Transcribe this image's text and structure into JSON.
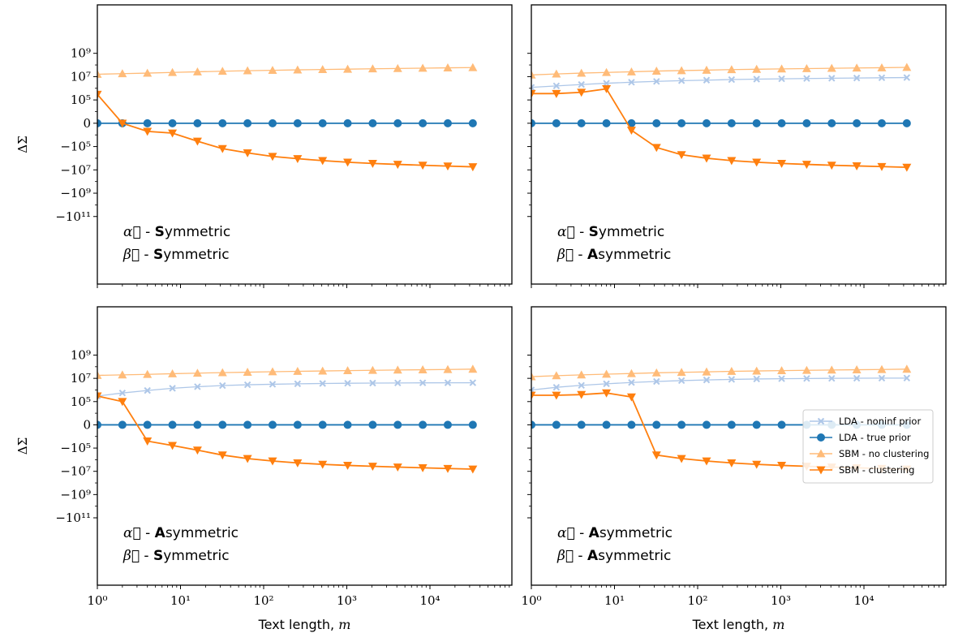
{
  "chart_data": [
    {
      "type": "line",
      "panel": "top-left",
      "annotation": {
        "alpha": "Symmetric",
        "beta": "Symmetric"
      },
      "xlabel": "",
      "ylabel": "ΔΣ",
      "xscale": "log",
      "yscale": "symlog",
      "xlim": [
        1,
        60000
      ],
      "x": [
        1,
        2,
        4,
        8,
        16,
        32,
        64,
        128,
        256,
        512,
        1024,
        2048,
        4096,
        8192,
        16384,
        32768
      ],
      "series": [
        {
          "name": "LDA - noninf prior",
          "marker": "x",
          "color": "#aec7e8",
          "values": null
        },
        {
          "name": "LDA - true prior",
          "marker": "o",
          "color": "#1f77b4",
          "values": [
            0,
            0,
            0,
            0,
            0,
            0,
            0,
            0,
            0,
            0,
            0,
            0,
            0,
            0,
            0,
            0
          ]
        },
        {
          "name": "SBM - no clustering",
          "marker": "^",
          "color": "#ffbb78",
          "values": [
            16000000,
            18000000,
            20000000,
            23000000,
            26000000,
            29000000,
            32000000,
            35000000,
            38000000,
            41000000,
            44000000,
            47000000,
            50000000,
            53000000,
            57000000,
            60000000
          ]
        },
        {
          "name": "SBM - clustering",
          "marker": "v",
          "color": "#ff7f0e",
          "values": [
            300000,
            -3,
            -5000,
            -7000,
            -35000,
            -150000,
            -350000,
            -700000,
            -1100000,
            -1600000,
            -2200000,
            -2800000,
            -3400000,
            -4000000,
            -4700000,
            -5500000
          ]
        }
      ]
    },
    {
      "type": "line",
      "panel": "top-right",
      "annotation": {
        "alpha": "Symmetric",
        "beta": "Asymmetric"
      },
      "xlabel": "",
      "ylabel": "",
      "xscale": "log",
      "yscale": "symlog",
      "xlim": [
        1,
        60000
      ],
      "x": [
        1,
        2,
        4,
        8,
        16,
        32,
        64,
        128,
        256,
        512,
        1024,
        2048,
        4096,
        8192,
        16384,
        32768
      ],
      "series": [
        {
          "name": "LDA - noninf prior",
          "marker": "x",
          "color": "#aec7e8",
          "values": [
            1200000,
            1600000,
            2100000,
            2700000,
            3300000,
            3900000,
            4500000,
            5000000,
            5600000,
            6100000,
            6500000,
            6900000,
            7300000,
            7600000,
            8000000,
            8300000
          ]
        },
        {
          "name": "LDA - true prior",
          "marker": "o",
          "color": "#1f77b4",
          "values": [
            0,
            0,
            0,
            0,
            0,
            0,
            0,
            0,
            0,
            0,
            0,
            0,
            0,
            0,
            0,
            0
          ]
        },
        {
          "name": "SBM - no clustering",
          "marker": "^",
          "color": "#ffbb78",
          "values": [
            14000000,
            17000000,
            20000000,
            23000000,
            26000000,
            30000000,
            33000000,
            36000000,
            40000000,
            43000000,
            46000000,
            49000000,
            52000000,
            55000000,
            58000000,
            62000000
          ]
        },
        {
          "name": "SBM - clustering",
          "marker": "v",
          "color": "#ff7f0e",
          "values": [
            350000,
            350000,
            450000,
            900000,
            -4000,
            -120000,
            -500000,
            -1000000,
            -1600000,
            -2200000,
            -2800000,
            -3400000,
            -4000000,
            -4600000,
            -5200000,
            -6000000
          ]
        }
      ]
    },
    {
      "type": "line",
      "panel": "bottom-left",
      "annotation": {
        "alpha": "Asymmetric",
        "beta": "Symmetric"
      },
      "xlabel": "Text length, m",
      "ylabel": "ΔΣ",
      "xscale": "log",
      "yscale": "symlog",
      "xlim": [
        1,
        60000
      ],
      "x": [
        1,
        2,
        4,
        8,
        16,
        32,
        64,
        128,
        256,
        512,
        1024,
        2048,
        4096,
        8192,
        16384,
        32768
      ],
      "series": [
        {
          "name": "LDA - noninf prior",
          "marker": "x",
          "color": "#aec7e8",
          "values": [
            300000,
            550000,
            900000,
            1400000,
            1900000,
            2400000,
            2800000,
            3100000,
            3400000,
            3600000,
            3800000,
            3900000,
            4000000,
            4100000,
            4150000,
            4200000
          ]
        },
        {
          "name": "LDA - true prior",
          "marker": "o",
          "color": "#1f77b4",
          "values": [
            0,
            0,
            0,
            0,
            0,
            0,
            0,
            0,
            0,
            0,
            0,
            0,
            0,
            0,
            0,
            0
          ]
        },
        {
          "name": "SBM - no clustering",
          "marker": "^",
          "color": "#ffbb78",
          "values": [
            18000000,
            20000000,
            22000000,
            25000000,
            28000000,
            31000000,
            34000000,
            37000000,
            40000000,
            43000000,
            46000000,
            49000000,
            52000000,
            55000000,
            58000000,
            62000000
          ]
        },
        {
          "name": "SBM - clustering",
          "marker": "v",
          "color": "#ff7f0e",
          "values": [
            300000,
            100000,
            -25000,
            -60000,
            -150000,
            -400000,
            -800000,
            -1300000,
            -1900000,
            -2500000,
            -3100000,
            -3700000,
            -4300000,
            -5000000,
            -5700000,
            -6500000
          ]
        }
      ]
    },
    {
      "type": "line",
      "panel": "bottom-right",
      "annotation": {
        "alpha": "Asymmetric",
        "beta": "Asymmetric"
      },
      "xlabel": "Text length, m",
      "ylabel": "",
      "xscale": "log",
      "yscale": "symlog",
      "xlim": [
        1,
        60000
      ],
      "x": [
        1,
        2,
        4,
        8,
        16,
        32,
        64,
        128,
        256,
        512,
        1024,
        2048,
        4096,
        8192,
        16384,
        32768
      ],
      "series": [
        {
          "name": "LDA - noninf prior",
          "marker": "x",
          "color": "#aec7e8",
          "values": [
            1000000,
            1700000,
            2500000,
            3400000,
            4400000,
            5400000,
            6400000,
            7300000,
            8100000,
            8800000,
            9300000,
            9700000,
            10000000,
            10200000,
            10400000,
            10500000
          ]
        },
        {
          "name": "LDA - true prior",
          "marker": "o",
          "color": "#1f77b4",
          "values": [
            0,
            0,
            0,
            0,
            0,
            0,
            0,
            0,
            0,
            0,
            0,
            0,
            0,
            0,
            0,
            0
          ]
        },
        {
          "name": "SBM - no clustering",
          "marker": "^",
          "color": "#ffbb78",
          "values": [
            14000000,
            17000000,
            20000000,
            23000000,
            26000000,
            30000000,
            33000000,
            36000000,
            40000000,
            43000000,
            46000000,
            49000000,
            52000000,
            55000000,
            58000000,
            62000000
          ]
        },
        {
          "name": "SBM - clustering",
          "marker": "v",
          "color": "#ff7f0e",
          "values": [
            350000,
            350000,
            400000,
            550000,
            250000,
            -400000,
            -800000,
            -1300000,
            -1900000,
            -2500000,
            -3100000,
            -3700000,
            -4300000,
            -5000000,
            -5700000,
            -6500000
          ]
        }
      ]
    }
  ],
  "axes": {
    "y_tick_labels": [
      "10⁹",
      "10⁷",
      "10⁵",
      "0",
      "−10⁵",
      "−10⁷",
      "−10⁹",
      "−10¹¹"
    ],
    "x_tick_labels": [
      "10⁰",
      "10¹",
      "10²",
      "10³",
      "10⁴"
    ],
    "ylabel": "ΔΣ",
    "xlabel_text": "Text length, ",
    "xlabel_var": "m"
  },
  "annotation_labels": {
    "alpha_symbol": "α⃗",
    "beta_symbol": "β⃗",
    "separator": " - "
  },
  "legend": {
    "placement": "right, bottom-right panel",
    "entries": [
      "LDA - noninf prior",
      "LDA - true prior",
      "SBM - no clustering",
      "SBM - clustering"
    ]
  }
}
